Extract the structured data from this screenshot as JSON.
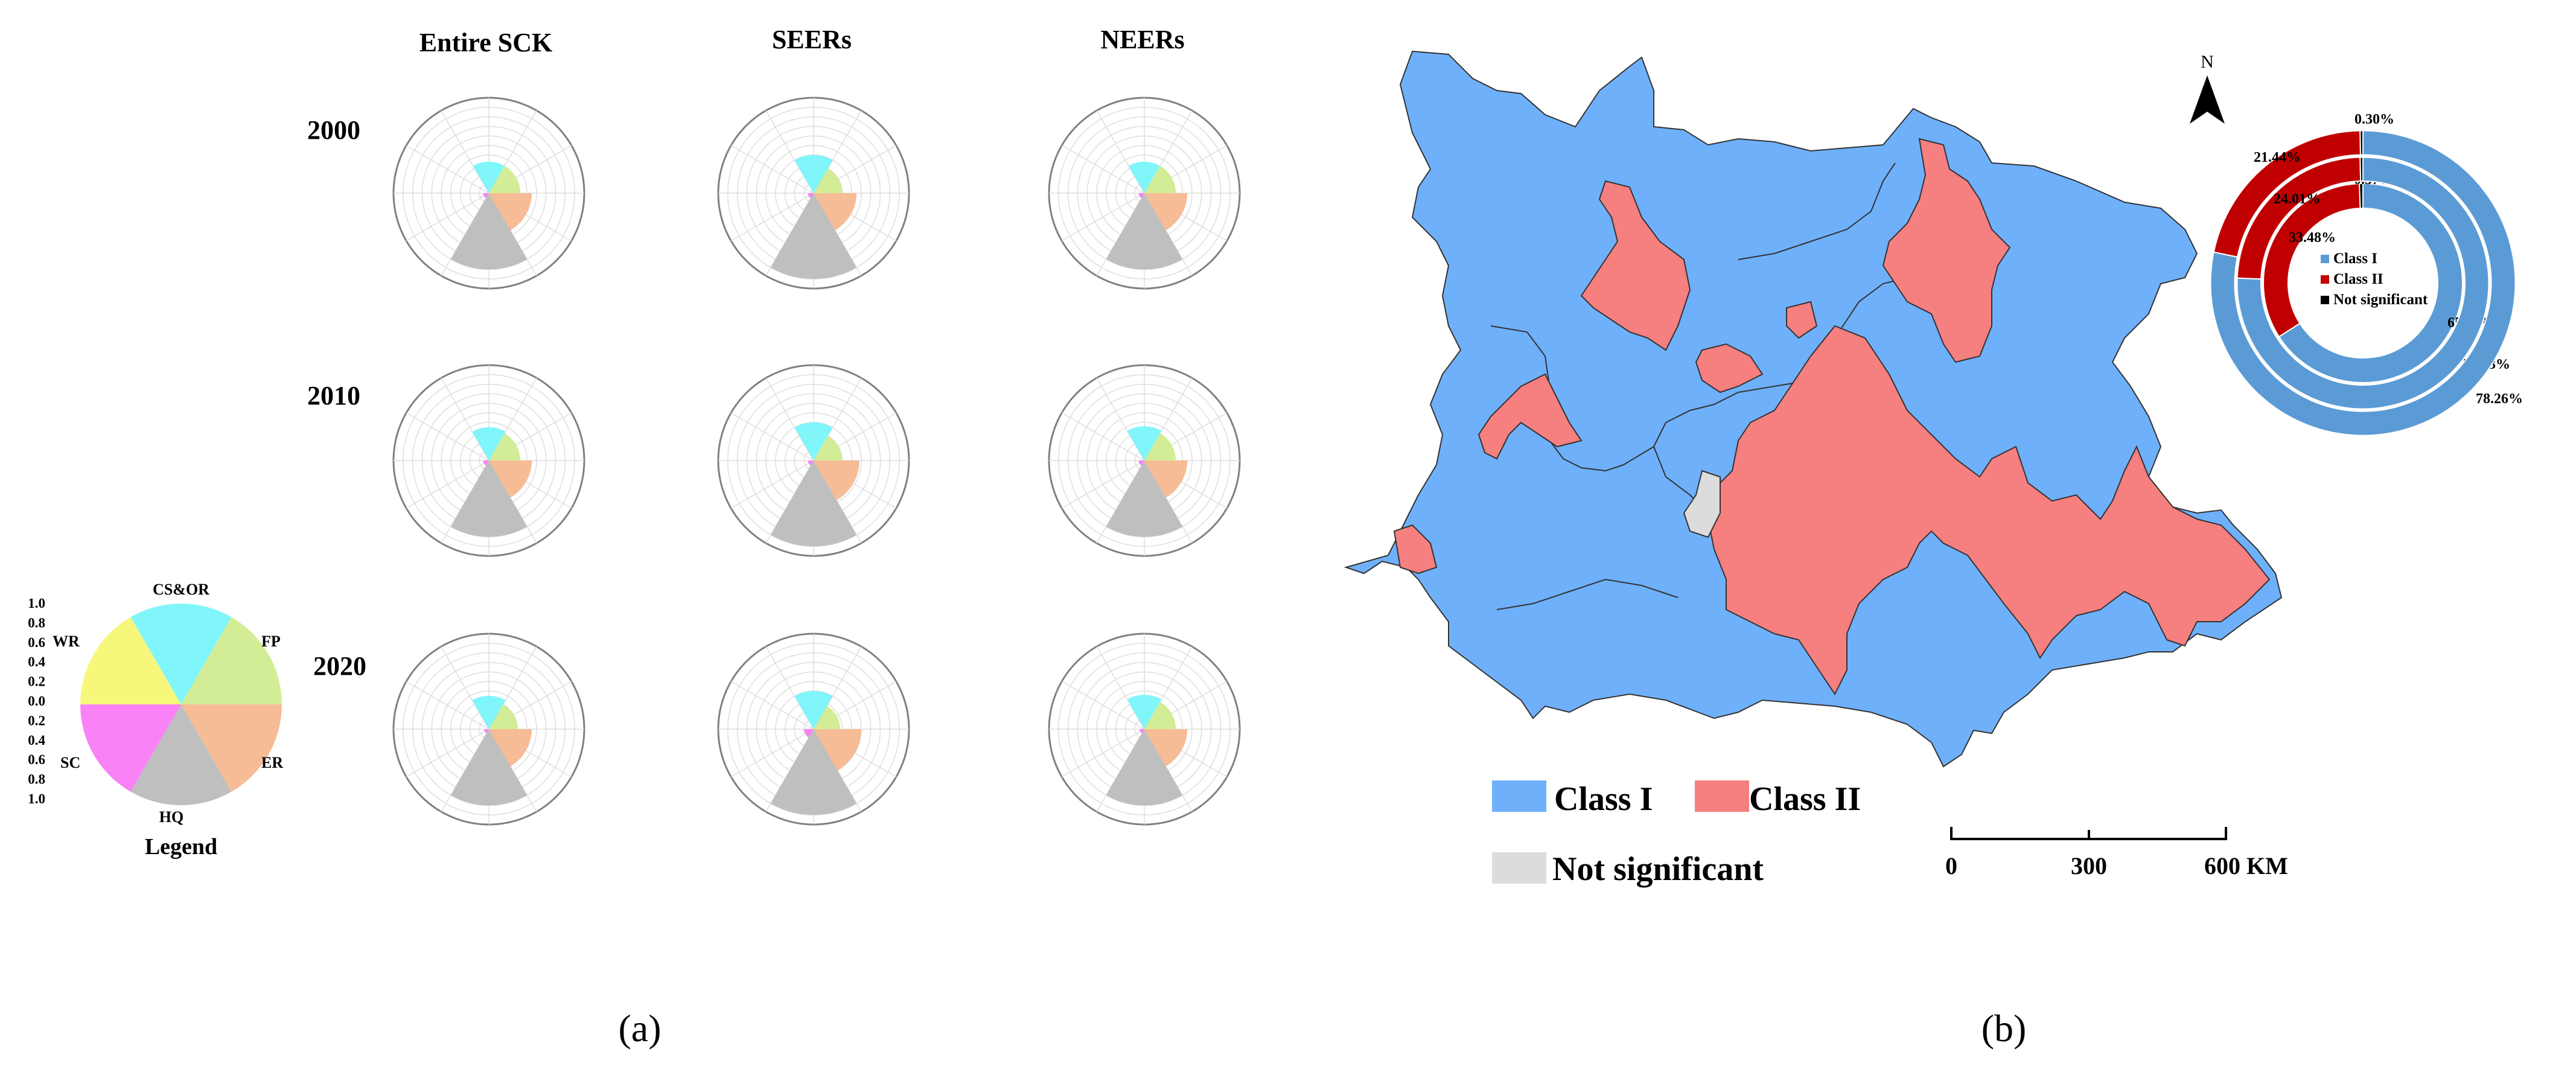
{
  "panel_a": {
    "column_headers": [
      "Entire SCK",
      "SEERs",
      "NEERs"
    ],
    "row_labels": [
      "2000",
      "2010",
      "2020"
    ],
    "legend": {
      "title": "Legend",
      "scale_labels": [
        "1.0",
        "0.8",
        "0.6",
        "0.4",
        "0.2",
        "0.0",
        "0.2",
        "0.4",
        "0.6",
        "0.8",
        "1.0"
      ],
      "categories": [
        "CS&OR",
        "FP",
        "ER",
        "HQ",
        "SC",
        "WR"
      ]
    },
    "caption": "(a)"
  },
  "panel_b": {
    "north_label": "N",
    "map_legend": {
      "class_i": "Class I",
      "class_ii": "Class II",
      "not_significant": "Not significant"
    },
    "scale_bar": {
      "labels": [
        "0",
        "300",
        "600 KM"
      ]
    },
    "donut_legend": [
      "Class I",
      "Class II",
      "Not significant"
    ],
    "caption": "(b)"
  },
  "colors": {
    "CS&OR": "#80f6fb",
    "FP": "#d3ed96",
    "ER": "#f6bc95",
    "HQ": "#bfbfbf",
    "SC": "#f982f6",
    "WR": "#f7f77c",
    "class_i": "#6fb0fa",
    "class_ii": "#f67f7f",
    "not_significant": "#dcdcdc",
    "donut_class_i": "#5b9bd5",
    "donut_class_ii": "#c00000",
    "donut_not_significant": "#000000"
  },
  "chart_data": [
    {
      "type": "polar-area",
      "categories": [
        "CS&OR",
        "FP",
        "ER",
        "HQ",
        "SC",
        "WR"
      ],
      "rlim": [
        0,
        1
      ],
      "grid": true,
      "series": [
        {
          "row": "2000",
          "column": "Entire SCK",
          "values": [
            0.33,
            0.33,
            0.45,
            0.8,
            0.06,
            0.0
          ]
        },
        {
          "row": "2000",
          "column": "SEERs",
          "values": [
            0.4,
            0.3,
            0.45,
            0.9,
            0.06,
            0.0
          ]
        },
        {
          "row": "2000",
          "column": "NEERs",
          "values": [
            0.33,
            0.33,
            0.45,
            0.8,
            0.06,
            0.0
          ]
        },
        {
          "row": "2010",
          "column": "Entire SCK",
          "values": [
            0.35,
            0.33,
            0.45,
            0.8,
            0.06,
            0.0
          ]
        },
        {
          "row": "2010",
          "column": "SEERs",
          "values": [
            0.4,
            0.3,
            0.48,
            0.9,
            0.06,
            0.0
          ]
        },
        {
          "row": "2010",
          "column": "NEERs",
          "values": [
            0.36,
            0.33,
            0.45,
            0.8,
            0.06,
            0.0
          ]
        },
        {
          "row": "2020",
          "column": "Entire SCK",
          "values": [
            0.35,
            0.3,
            0.45,
            0.8,
            0.05,
            0.0
          ]
        },
        {
          "row": "2020",
          "column": "SEERs",
          "values": [
            0.4,
            0.28,
            0.5,
            0.9,
            0.1,
            0.0
          ]
        },
        {
          "row": "2020",
          "column": "NEERs",
          "values": [
            0.36,
            0.33,
            0.45,
            0.8,
            0.05,
            0.0
          ]
        }
      ]
    },
    {
      "type": "donut",
      "categories": [
        "Class I",
        "Class II",
        "Not significant"
      ],
      "series": [
        {
          "values": [
            65.95,
            33.48,
            0.57
          ],
          "labels": [
            "65.95%",
            "33.48%",
            "0.57%"
          ]
        },
        {
          "values": [
            75.63,
            24.01,
            0.36
          ],
          "labels": [
            "75.63%",
            "24.01%",
            "0.36%"
          ]
        },
        {
          "values": [
            78.26,
            21.44,
            0.3
          ],
          "labels": [
            "78.26%",
            "21.44%",
            "0.30%"
          ]
        }
      ]
    }
  ]
}
